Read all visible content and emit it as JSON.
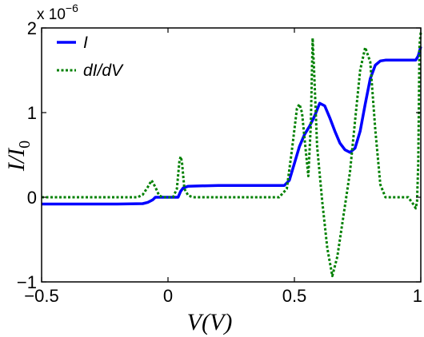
{
  "chart_data": {
    "type": "line",
    "title": "",
    "xlabel": "V(V)",
    "ylabel": "I/I0",
    "xlim": [
      -0.5,
      1.0
    ],
    "ylim": [
      -1e-06,
      2e-06
    ],
    "y_scale_label": "x 10^-6",
    "x_ticks": [
      {
        "value": -0.5,
        "label": "−0.5"
      },
      {
        "value": 0,
        "label": "0"
      },
      {
        "value": 0.5,
        "label": "0.5"
      },
      {
        "value": 1.0,
        "label": "1"
      }
    ],
    "y_ticks": [
      {
        "value": -1e-06,
        "label": "−1"
      },
      {
        "value": 0,
        "label": "0"
      },
      {
        "value": 1e-06,
        "label": "1"
      },
      {
        "value": 2e-06,
        "label": "2"
      }
    ],
    "grid": false,
    "legend": {
      "position": "top-left"
    },
    "series": [
      {
        "name": "I",
        "color": "#0000ff",
        "style": "solid",
        "points": [
          [
            -0.5,
            -8e-08
          ],
          [
            -0.2,
            -8e-08
          ],
          [
            -0.1,
            -7.5e-08
          ],
          [
            -0.08,
            -6e-08
          ],
          [
            -0.06,
            -3e-08
          ],
          [
            -0.05,
            0.0
          ],
          [
            0.0,
            0.0
          ],
          [
            0.04,
            0.0
          ],
          [
            0.05,
            7e-08
          ],
          [
            0.06,
            1.1e-07
          ],
          [
            0.08,
            1.3e-07
          ],
          [
            0.2,
            1.4e-07
          ],
          [
            0.46,
            1.4e-07
          ],
          [
            0.48,
            2e-07
          ],
          [
            0.5,
            4e-07
          ],
          [
            0.52,
            6e-07
          ],
          [
            0.54,
            7.4e-07
          ],
          [
            0.56,
            8.4e-07
          ],
          [
            0.58,
            9.6e-07
          ],
          [
            0.6,
            1.11e-06
          ],
          [
            0.62,
            1.08e-06
          ],
          [
            0.64,
            9.4e-07
          ],
          [
            0.66,
            7.8e-07
          ],
          [
            0.68,
            6.4e-07
          ],
          [
            0.7,
            5.6e-07
          ],
          [
            0.72,
            5.3e-07
          ],
          [
            0.74,
            5.8e-07
          ],
          [
            0.76,
            7.8e-07
          ],
          [
            0.78,
            1.1e-06
          ],
          [
            0.8,
            1.4e-06
          ],
          [
            0.82,
            1.56e-06
          ],
          [
            0.84,
            1.61e-06
          ],
          [
            0.86,
            1.62e-06
          ],
          [
            0.98,
            1.62e-06
          ],
          [
            0.99,
            1.67e-06
          ],
          [
            1.0,
            1.78e-06
          ]
        ]
      },
      {
        "name": "dI/dV",
        "color": "#008000",
        "style": "dotted",
        "points": [
          [
            -0.5,
            0.0
          ],
          [
            -0.12,
            0.0
          ],
          [
            -0.1,
            3e-08
          ],
          [
            -0.08,
            1.2e-07
          ],
          [
            -0.065,
            2e-07
          ],
          [
            -0.05,
            1.2e-07
          ],
          [
            -0.035,
            2e-08
          ],
          [
            -0.02,
            0.0
          ],
          [
            0.02,
            0.0
          ],
          [
            0.035,
            1e-07
          ],
          [
            0.045,
            4.2e-07
          ],
          [
            0.05,
            4.8e-07
          ],
          [
            0.055,
            4.2e-07
          ],
          [
            0.065,
            1e-07
          ],
          [
            0.08,
            2e-08
          ],
          [
            0.1,
            0.0
          ],
          [
            0.44,
            0.0
          ],
          [
            0.47,
            1e-07
          ],
          [
            0.49,
            5.5e-07
          ],
          [
            0.51,
            1.05e-06
          ],
          [
            0.52,
            1.1e-06
          ],
          [
            0.53,
            1e-06
          ],
          [
            0.545,
            5.5e-07
          ],
          [
            0.555,
            2.5e-07
          ],
          [
            0.565,
            8.5e-07
          ],
          [
            0.572,
            1.88e-06
          ],
          [
            0.578,
            1.5e-06
          ],
          [
            0.59,
            6e-07
          ],
          [
            0.61,
            -5e-08
          ],
          [
            0.63,
            -6e-07
          ],
          [
            0.65,
            -9.3e-07
          ],
          [
            0.67,
            -7e-07
          ],
          [
            0.7,
            -1e-07
          ],
          [
            0.72,
            3e-07
          ],
          [
            0.74,
            9e-07
          ],
          [
            0.76,
            1.5e-06
          ],
          [
            0.78,
            1.77e-06
          ],
          [
            0.8,
            1.6e-06
          ],
          [
            0.82,
            8e-07
          ],
          [
            0.84,
            1.5e-07
          ],
          [
            0.86,
            0.0
          ],
          [
            0.95,
            0.0
          ],
          [
            0.97,
            -8e-08
          ],
          [
            0.98,
            -1.3e-07
          ],
          [
            0.985,
            -5e-08
          ],
          [
            0.99,
            4e-07
          ],
          [
            0.995,
            1.8e-06
          ],
          [
            1.0,
            1.95e-06
          ]
        ]
      }
    ]
  }
}
